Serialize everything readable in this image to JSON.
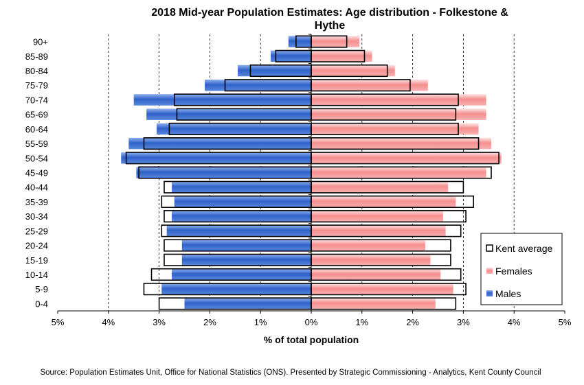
{
  "chart_data": {
    "type": "bar",
    "orientation": "horizontal-population-pyramid",
    "title_lines": [
      "2018 Mid-year Population Estimates: Age distribution - Folkestone &",
      "Hythe"
    ],
    "xlabel": "% of total population",
    "xlim": [
      -5,
      5
    ],
    "x_tick_labels": [
      "5%",
      "4%",
      "3%",
      "2%",
      "1%",
      "0%",
      "1%",
      "2%",
      "3%",
      "4%",
      "5%"
    ],
    "categories": [
      "90+",
      "85-89",
      "80-84",
      "75-79",
      "70-74",
      "65-69",
      "60-64",
      "55-59",
      "50-54",
      "45-49",
      "40-44",
      "35-39",
      "30-34",
      "25-29",
      "20-24",
      "15-19",
      "10-14",
      "5-9",
      "0-4"
    ],
    "series": [
      {
        "name": "Males",
        "side": "left",
        "color": "#3d6fd1",
        "values": [
          0.45,
          0.8,
          1.45,
          2.1,
          3.5,
          3.25,
          3.05,
          3.6,
          3.75,
          3.45,
          2.75,
          2.7,
          2.75,
          2.85,
          2.55,
          2.55,
          2.75,
          2.95,
          2.5
        ]
      },
      {
        "name": "Females",
        "side": "right",
        "color": "#f59a9a",
        "values": [
          0.95,
          1.2,
          1.65,
          2.3,
          3.45,
          3.45,
          3.3,
          3.55,
          3.75,
          3.45,
          2.7,
          2.85,
          2.6,
          2.65,
          2.25,
          2.35,
          2.55,
          2.8,
          2.45
        ]
      },
      {
        "name": "Kent average",
        "style": "outline",
        "left_values": [
          0.3,
          0.7,
          1.2,
          1.7,
          2.7,
          2.65,
          2.8,
          3.3,
          3.65,
          3.4,
          2.9,
          2.95,
          2.9,
          2.95,
          2.9,
          2.9,
          3.15,
          3.3,
          3.0
        ],
        "right_values": [
          0.7,
          1.05,
          1.5,
          1.95,
          2.9,
          2.85,
          2.9,
          3.3,
          3.7,
          3.55,
          3.0,
          3.2,
          3.05,
          2.95,
          2.75,
          2.75,
          2.95,
          3.05,
          2.85
        ]
      }
    ],
    "legend": {
      "placement": "bottom-right",
      "entries": [
        "Kent average",
        "Females",
        "Males"
      ]
    },
    "grid": {
      "vertical_dashed": true
    }
  },
  "source_note": "Source: Population Estimates Unit, Office for National Statistics (ONS). Presented by Strategic Commissioning - Analytics, Kent County Council"
}
